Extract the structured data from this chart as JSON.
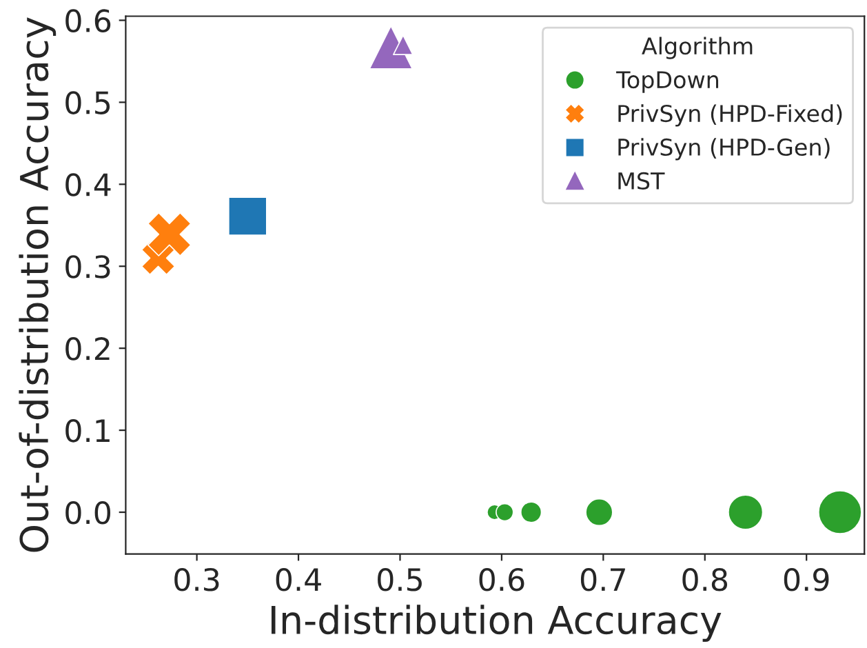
{
  "chart_data": {
    "type": "bubble",
    "xlabel": "In-distribution Accuracy",
    "ylabel": "Out-of-distribution Accuracy",
    "legend_title": "Algorithm",
    "legend": "top right",
    "series": [
      {
        "name": "TopDown",
        "color": "#2ca02c",
        "marker": "circle",
        "x": [
          0.593,
          0.603,
          0.629,
          0.696,
          0.84,
          0.933
        ],
        "values": [
          0.0,
          0.0,
          0.0,
          0.0,
          0.0,
          0.0
        ],
        "sizes": [
          0.12,
          0.16,
          0.23,
          0.39,
          0.64,
          1.0
        ]
      },
      {
        "name": "PrivSyn (HPD-Fixed)",
        "color": "#ff7f0e",
        "marker": "cross",
        "x": [
          0.262,
          0.273
        ],
        "values": [
          0.31,
          0.339
        ],
        "sizes": [
          0.48,
          0.8
        ]
      },
      {
        "name": "PrivSyn (HPD-Gen)",
        "color": "#1f77b4",
        "marker": "square",
        "x": [
          0.35
        ],
        "values": [
          0.361
        ],
        "sizes": [
          1.0
        ]
      },
      {
        "name": "MST",
        "color": "#9467bd",
        "marker": "triangle",
        "x": [
          0.491,
          0.503
        ],
        "values": [
          0.567,
          0.57
        ],
        "sizes": [
          0.64,
          0.13
        ]
      }
    ],
    "xlim": [
      0.23,
      0.957
    ],
    "ylim": [
      -0.051,
      0.605
    ],
    "xticks": [
      0.3,
      0.4,
      0.5,
      0.6,
      0.7,
      0.8,
      0.9
    ],
    "yticks": [
      {
        "value": 0,
        "label": "0.0"
      },
      0.1,
      0.2,
      0.3,
      0.4,
      0.5,
      0.6
    ]
  }
}
